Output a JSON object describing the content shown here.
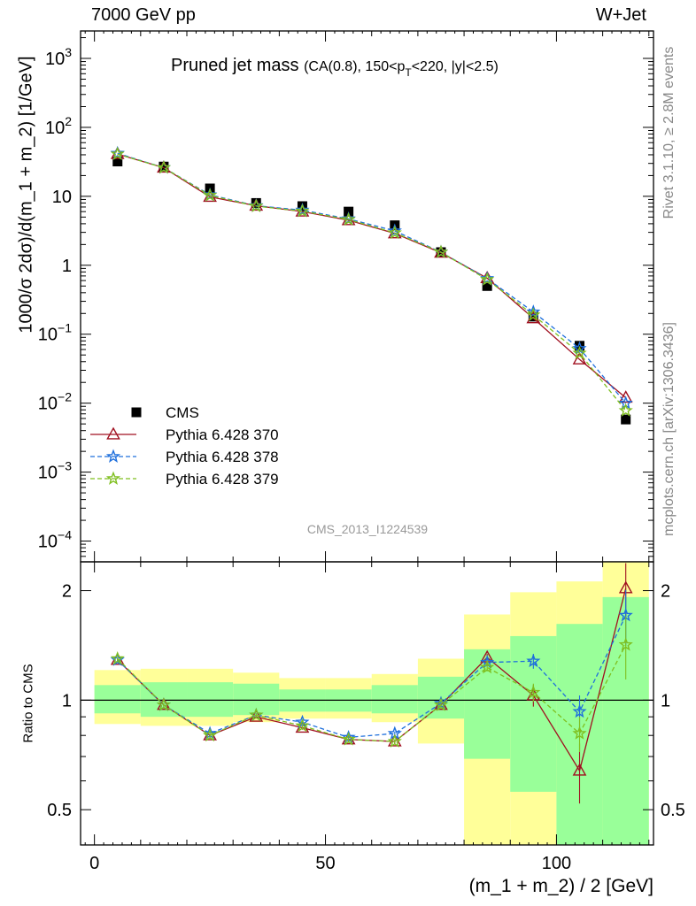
{
  "header": {
    "energy": "7000 GeV pp",
    "process": "W+Jet"
  },
  "side_labels": {
    "rivet": "Rivet 3.1.10, ≥ 2.8M events",
    "mcplots": "mcplots.cern.ch [arXiv:1306.3436]"
  },
  "chart_data": [
    {
      "type": "scatter",
      "panel": "main",
      "title": "Pruned jet mass",
      "title_qualifier": "(CA(0.8), 150<p_T<220, |y|<2.5)",
      "watermark": "CMS_2013_I1224539",
      "ylabel": "1000/σ 2dσ)/d(m_1 + m_2) [1/GeV]",
      "yscale": "log",
      "ylim": [
        5e-05,
        2500
      ],
      "xlim": [
        -3,
        121
      ],
      "x": [
        5,
        15,
        25,
        35,
        45,
        55,
        65,
        75,
        85,
        95,
        105,
        115
      ],
      "legend_position": "bottom-left",
      "series": [
        {
          "name": "CMS",
          "color": "#000000",
          "marker": "square",
          "values": [
            32,
            27,
            13,
            8.0,
            7.2,
            6.0,
            3.8,
            1.55,
            0.5,
            0.18,
            0.068,
            0.0058
          ]
        },
        {
          "name": "Pythia 6.428 370",
          "color": "#a01020",
          "marker": "triangle",
          "line": "solid",
          "values": [
            41,
            26,
            9.8,
            7.3,
            6.0,
            4.5,
            2.9,
            1.52,
            0.65,
            0.17,
            0.043,
            0.012
          ]
        },
        {
          "name": "Pythia 6.428 378",
          "color": "#1e6fdc",
          "marker": "star",
          "line": "dashed",
          "values": [
            42,
            26,
            10.5,
            7.3,
            6.3,
            4.7,
            3.15,
            1.55,
            0.64,
            0.21,
            0.062,
            0.01
          ]
        },
        {
          "name": "Pythia 6.428 379",
          "color": "#7fbf1f",
          "marker": "star",
          "line": "dashed",
          "values": [
            41,
            26,
            10.3,
            7.2,
            6.1,
            4.6,
            2.95,
            1.55,
            0.62,
            0.19,
            0.053,
            0.0078
          ]
        }
      ]
    },
    {
      "type": "scatter",
      "panel": "ratio",
      "ylabel": "Ratio to CMS",
      "xlabel": "(m_1 + m_2) / 2 [GeV]",
      "yscale": "log",
      "ylim": [
        0.4,
        2.4
      ],
      "xlim": [
        -3,
        121
      ],
      "x": [
        5,
        15,
        25,
        35,
        45,
        55,
        65,
        75,
        85,
        95,
        105,
        115
      ],
      "bins": [
        [
          0,
          10
        ],
        [
          10,
          20
        ],
        [
          20,
          30
        ],
        [
          30,
          40
        ],
        [
          40,
          50
        ],
        [
          50,
          60
        ],
        [
          60,
          70
        ],
        [
          70,
          80
        ],
        [
          80,
          90
        ],
        [
          90,
          100
        ],
        [
          100,
          110
        ],
        [
          110,
          120
        ]
      ],
      "band_yellow": [
        [
          0.86,
          1.21
        ],
        [
          0.85,
          1.22
        ],
        [
          0.85,
          1.22
        ],
        [
          0.87,
          1.19
        ],
        [
          0.89,
          1.15
        ],
        [
          0.89,
          1.15
        ],
        [
          0.87,
          1.18
        ],
        [
          0.76,
          1.3
        ],
        [
          0.4,
          1.72
        ],
        [
          0.4,
          1.98
        ],
        [
          0.4,
          2.12
        ],
        [
          0.4,
          2.4
        ]
      ],
      "band_green": [
        [
          0.92,
          1.1
        ],
        [
          0.9,
          1.12
        ],
        [
          0.9,
          1.12
        ],
        [
          0.91,
          1.11
        ],
        [
          0.93,
          1.07
        ],
        [
          0.93,
          1.07
        ],
        [
          0.92,
          1.1
        ],
        [
          0.89,
          1.16
        ],
        [
          0.69,
          1.38
        ],
        [
          0.56,
          1.5
        ],
        [
          0.4,
          1.62
        ],
        [
          0.4,
          1.92
        ]
      ],
      "reference_line": 1,
      "series": [
        {
          "name": "Pythia 6.428 370",
          "color": "#a01020",
          "marker": "triangle",
          "line": "solid",
          "values": [
            1.29,
            0.97,
            0.8,
            0.9,
            0.84,
            0.78,
            0.77,
            0.97,
            1.31,
            1.03,
            0.64,
            2.03
          ],
          "errors": [
            0.015,
            0.01,
            0.01,
            0.01,
            0.01,
            0.01,
            0.01,
            0.01,
            0.03,
            0.07,
            0.12,
            0.35
          ]
        },
        {
          "name": "Pythia 6.428 378",
          "color": "#1e6fdc",
          "marker": "star",
          "line": "dashed",
          "values": [
            1.29,
            0.97,
            0.81,
            0.91,
            0.87,
            0.79,
            0.81,
            0.98,
            1.27,
            1.28,
            0.93,
            1.71
          ],
          "errors": [
            0.015,
            0.01,
            0.01,
            0.01,
            0.01,
            0.01,
            0.01,
            0.01,
            0.03,
            0.06,
            0.1,
            0.3
          ]
        },
        {
          "name": "Pythia 6.428 379",
          "color": "#7fbf1f",
          "marker": "star",
          "line": "dashed",
          "values": [
            1.3,
            0.97,
            0.8,
            0.91,
            0.85,
            0.78,
            0.77,
            0.97,
            1.23,
            1.05,
            0.81,
            1.42
          ],
          "errors": [
            0.015,
            0.01,
            0.01,
            0.01,
            0.01,
            0.01,
            0.01,
            0.01,
            0.03,
            0.06,
            0.09,
            0.28
          ]
        }
      ]
    }
  ],
  "ticks": {
    "x": [
      "0",
      "50",
      "100"
    ],
    "main_y": [
      "10⁻⁴",
      "10⁻³",
      "10⁻²",
      "10⁻¹",
      "1",
      "10",
      "10²",
      "10³"
    ],
    "ratio_y": [
      "0.5",
      "1",
      "2"
    ]
  }
}
